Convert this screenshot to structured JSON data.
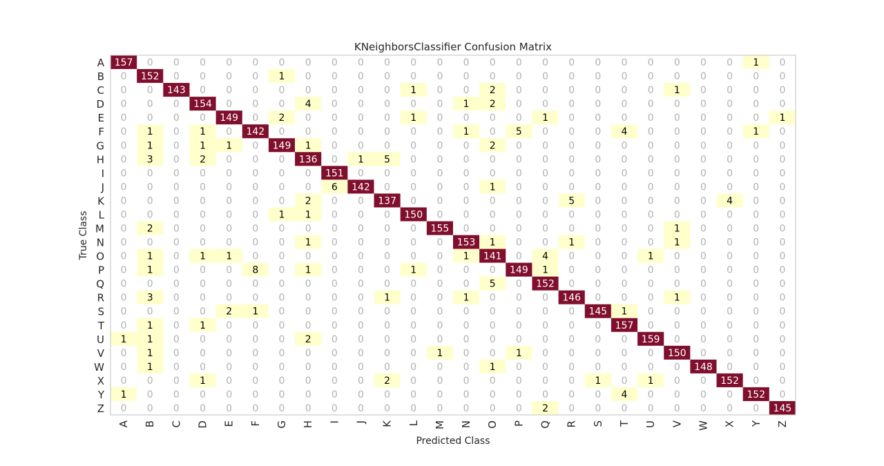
{
  "chart_data": {
    "type": "heatmap",
    "title": "KNeighborsClassifier Confusion Matrix",
    "xlabel": "Predicted Class",
    "ylabel": "True Class",
    "classes": [
      "A",
      "B",
      "C",
      "D",
      "E",
      "F",
      "G",
      "H",
      "I",
      "J",
      "K",
      "L",
      "M",
      "N",
      "O",
      "P",
      "Q",
      "R",
      "S",
      "T",
      "U",
      "V",
      "W",
      "X",
      "Y",
      "Z"
    ],
    "diagonal": [
      157,
      152,
      143,
      154,
      149,
      142,
      149,
      136,
      151,
      142,
      137,
      150,
      155,
      153,
      141,
      149,
      152,
      146,
      145,
      157,
      159,
      150,
      148,
      152,
      152,
      145
    ],
    "off_diagonal": [
      {
        "true": "A",
        "pred": "Y",
        "value": 1
      },
      {
        "true": "B",
        "pred": "G",
        "value": 1
      },
      {
        "true": "C",
        "pred": "L",
        "value": 1
      },
      {
        "true": "C",
        "pred": "O",
        "value": 2
      },
      {
        "true": "C",
        "pred": "V",
        "value": 1
      },
      {
        "true": "D",
        "pred": "H",
        "value": 4
      },
      {
        "true": "D",
        "pred": "N",
        "value": 1
      },
      {
        "true": "D",
        "pred": "O",
        "value": 2
      },
      {
        "true": "E",
        "pred": "G",
        "value": 2
      },
      {
        "true": "E",
        "pred": "L",
        "value": 1
      },
      {
        "true": "E",
        "pred": "Q",
        "value": 1
      },
      {
        "true": "E",
        "pred": "Z",
        "value": 1
      },
      {
        "true": "F",
        "pred": "B",
        "value": 1
      },
      {
        "true": "F",
        "pred": "D",
        "value": 1
      },
      {
        "true": "F",
        "pred": "N",
        "value": 1
      },
      {
        "true": "F",
        "pred": "P",
        "value": 5
      },
      {
        "true": "F",
        "pred": "T",
        "value": 4
      },
      {
        "true": "F",
        "pred": "Y",
        "value": 1
      },
      {
        "true": "G",
        "pred": "B",
        "value": 1
      },
      {
        "true": "G",
        "pred": "D",
        "value": 1
      },
      {
        "true": "G",
        "pred": "E",
        "value": 1
      },
      {
        "true": "G",
        "pred": "H",
        "value": 1
      },
      {
        "true": "G",
        "pred": "O",
        "value": 2
      },
      {
        "true": "H",
        "pred": "B",
        "value": 3
      },
      {
        "true": "H",
        "pred": "D",
        "value": 2
      },
      {
        "true": "H",
        "pred": "J",
        "value": 1
      },
      {
        "true": "H",
        "pred": "K",
        "value": 5
      },
      {
        "true": "J",
        "pred": "I",
        "value": 6
      },
      {
        "true": "J",
        "pred": "O",
        "value": 1
      },
      {
        "true": "K",
        "pred": "H",
        "value": 2
      },
      {
        "true": "K",
        "pred": "R",
        "value": 5
      },
      {
        "true": "K",
        "pred": "X",
        "value": 4
      },
      {
        "true": "L",
        "pred": "G",
        "value": 1
      },
      {
        "true": "L",
        "pred": "H",
        "value": 1
      },
      {
        "true": "M",
        "pred": "B",
        "value": 2
      },
      {
        "true": "M",
        "pred": "V",
        "value": 1
      },
      {
        "true": "N",
        "pred": "H",
        "value": 1
      },
      {
        "true": "N",
        "pred": "O",
        "value": 1
      },
      {
        "true": "N",
        "pred": "R",
        "value": 1
      },
      {
        "true": "N",
        "pred": "V",
        "value": 1
      },
      {
        "true": "O",
        "pred": "B",
        "value": 1
      },
      {
        "true": "O",
        "pred": "D",
        "value": 1
      },
      {
        "true": "O",
        "pred": "E",
        "value": 1
      },
      {
        "true": "O",
        "pred": "N",
        "value": 1
      },
      {
        "true": "O",
        "pred": "Q",
        "value": 4
      },
      {
        "true": "O",
        "pred": "U",
        "value": 1
      },
      {
        "true": "P",
        "pred": "B",
        "value": 1
      },
      {
        "true": "P",
        "pred": "F",
        "value": 8
      },
      {
        "true": "P",
        "pred": "H",
        "value": 1
      },
      {
        "true": "P",
        "pred": "L",
        "value": 1
      },
      {
        "true": "P",
        "pred": "Q",
        "value": 1
      },
      {
        "true": "Q",
        "pred": "O",
        "value": 5
      },
      {
        "true": "R",
        "pred": "B",
        "value": 3
      },
      {
        "true": "R",
        "pred": "K",
        "value": 1
      },
      {
        "true": "R",
        "pred": "N",
        "value": 1
      },
      {
        "true": "R",
        "pred": "V",
        "value": 1
      },
      {
        "true": "S",
        "pred": "E",
        "value": 2
      },
      {
        "true": "S",
        "pred": "F",
        "value": 1
      },
      {
        "true": "S",
        "pred": "T",
        "value": 1
      },
      {
        "true": "T",
        "pred": "B",
        "value": 1
      },
      {
        "true": "T",
        "pred": "D",
        "value": 1
      },
      {
        "true": "U",
        "pred": "A",
        "value": 1
      },
      {
        "true": "U",
        "pred": "B",
        "value": 1
      },
      {
        "true": "U",
        "pred": "H",
        "value": 2
      },
      {
        "true": "V",
        "pred": "B",
        "value": 1
      },
      {
        "true": "V",
        "pred": "M",
        "value": 1
      },
      {
        "true": "V",
        "pred": "P",
        "value": 1
      },
      {
        "true": "W",
        "pred": "B",
        "value": 1
      },
      {
        "true": "W",
        "pred": "O",
        "value": 1
      },
      {
        "true": "X",
        "pred": "D",
        "value": 1
      },
      {
        "true": "X",
        "pred": "K",
        "value": 2
      },
      {
        "true": "X",
        "pred": "S",
        "value": 1
      },
      {
        "true": "X",
        "pred": "U",
        "value": 1
      },
      {
        "true": "Y",
        "pred": "A",
        "value": 1
      },
      {
        "true": "Y",
        "pred": "T",
        "value": 4
      },
      {
        "true": "Z",
        "pred": "Q",
        "value": 2
      }
    ],
    "zero_label": "0",
    "grid": false,
    "colors": {
      "high": "#800f2e",
      "low": "#ffffcc",
      "zero_text": "#b0b0b0",
      "high_text": "#ffffff",
      "low_text": "#000000",
      "frame": "#cccccc",
      "text": "#262626"
    }
  }
}
